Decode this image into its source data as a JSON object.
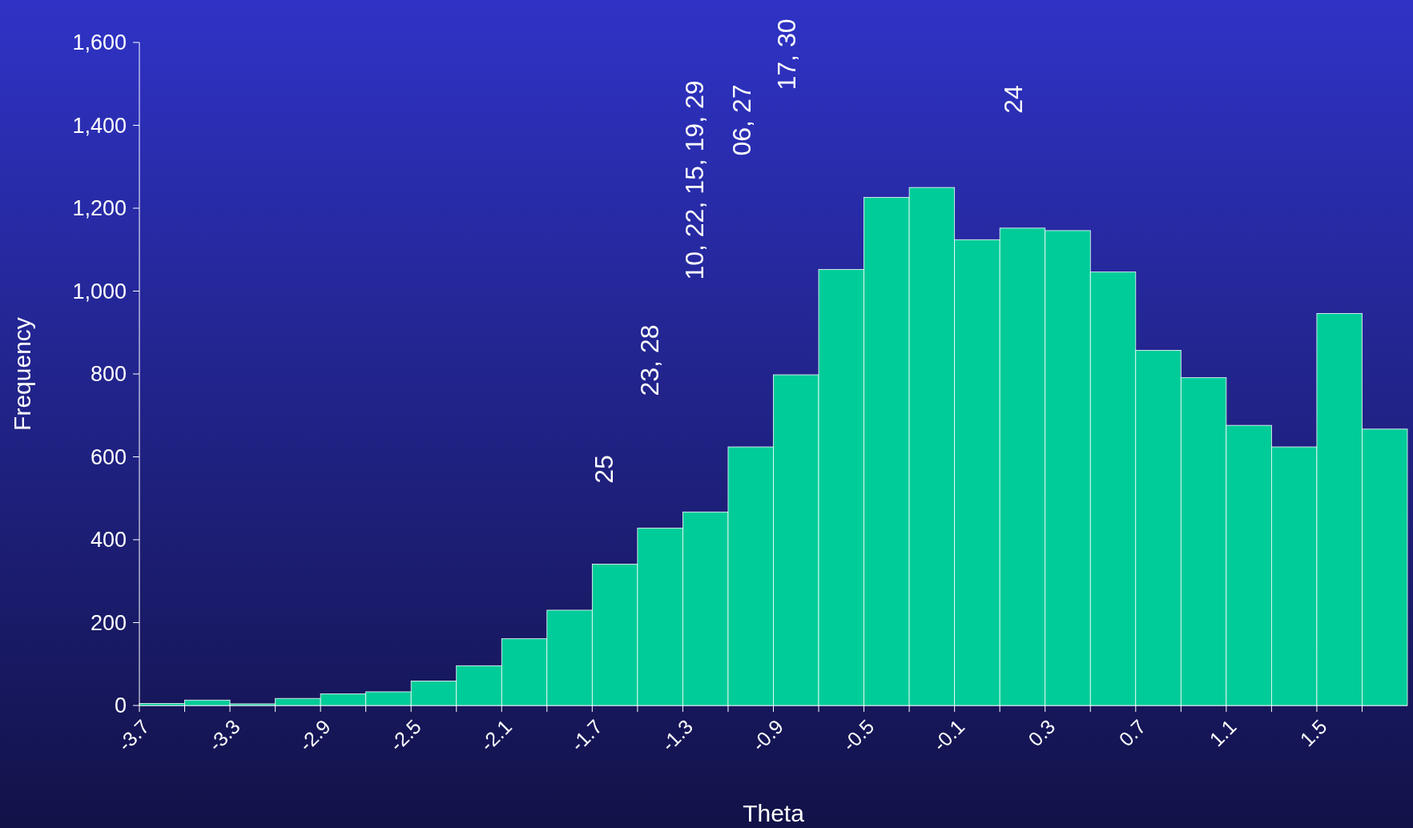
{
  "chart_data": {
    "type": "histogram",
    "xlabel": "Theta",
    "ylabel": "Frequency",
    "color": "#00cc99",
    "bins": [
      -3.7,
      -3.5,
      -3.3,
      -3.1,
      -2.9,
      -2.7,
      -2.5,
      -2.3,
      -2.1,
      -1.9,
      -1.7,
      -1.5,
      -1.3,
      -1.1,
      -0.9,
      -0.7,
      -0.5,
      -0.3,
      -0.1,
      0.1,
      0.3,
      0.5,
      0.7,
      0.9,
      1.1,
      1.3,
      1.5,
      1.7,
      1.9
    ],
    "values": [
      5,
      13,
      4,
      17,
      28,
      33,
      59,
      96,
      161,
      230,
      341,
      428,
      467,
      624,
      798,
      1052,
      1226,
      1250,
      1124,
      1152,
      1146,
      1046,
      857,
      791,
      676,
      624,
      946,
      667
    ],
    "xlim": [
      -3.7,
      1.9
    ],
    "xticks": [
      -3.7,
      {
        "value": -3.5,
        "label": null
      },
      -3.3,
      {
        "value": -3.1,
        "label": null
      },
      -2.9,
      {
        "value": -2.7,
        "label": null
      },
      -2.5,
      {
        "value": -2.3,
        "label": null
      },
      -2.1,
      {
        "value": -1.9,
        "label": null
      },
      -1.7,
      {
        "value": -1.5,
        "label": null
      },
      -1.3,
      {
        "value": -1.1,
        "label": null
      },
      -0.9,
      {
        "value": -0.7,
        "label": null
      },
      -0.5,
      {
        "value": -0.3,
        "label": null
      },
      -0.1,
      {
        "value": 0.1,
        "label": null
      },
      0.3,
      {
        "value": 0.5,
        "label": null
      },
      0.7,
      {
        "value": 0.9,
        "label": null
      },
      1.1,
      {
        "value": 1.3,
        "label": null
      },
      1.5,
      {
        "value": 1.7,
        "label": null
      }
    ],
    "ylim": [
      0,
      1600
    ],
    "yticks": [
      0,
      200,
      400,
      600,
      800,
      {
        "value": 1000,
        "label": "1,000"
      },
      {
        "value": 1200,
        "label": "1,200"
      },
      {
        "value": 1400,
        "label": "1,400"
      },
      {
        "value": 1600,
        "label": "1,600"
      }
    ],
    "grid": false,
    "annotations": [
      "25",
      "23, 28",
      "10, 22, 15, 19, 29",
      "06, 27",
      "17, 30",
      "24"
    ]
  }
}
